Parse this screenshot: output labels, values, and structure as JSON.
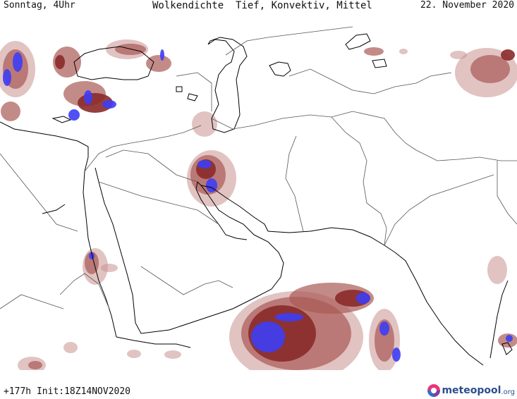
{
  "header": {
    "valid_day": "Sonntag, 4Uhr",
    "title": "Wolkendichte  Tief, Konvektiv, Mittel",
    "valid_date": "22. November 2020"
  },
  "footer": {
    "run_info": "+177h Init:18Z14NOV2020",
    "logo_text": "meteopool",
    "logo_ext": ".org"
  },
  "colors": {
    "coast": "#000000",
    "border": "#555555",
    "cloud_low": "#c9918f",
    "cloud_mid": "#a95a55",
    "cloud_high": "#8a2a2a",
    "cloud_max": "#3d3df5",
    "logo": "#2a4f8f"
  },
  "icons": {
    "logo": "meteopool-logo-icon"
  }
}
